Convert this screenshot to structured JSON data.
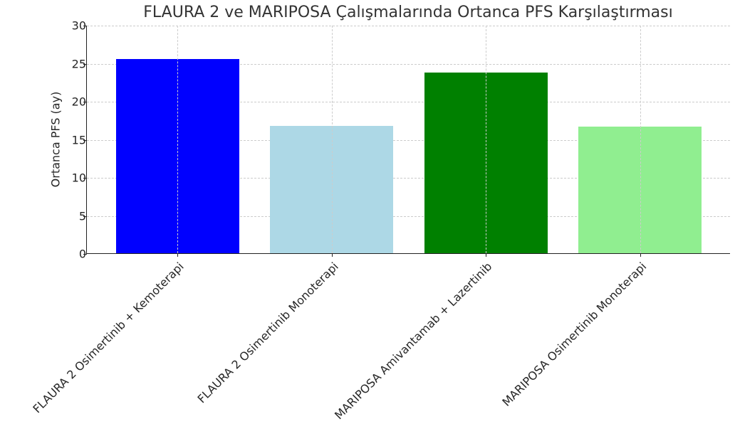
{
  "chart_data": {
    "type": "bar",
    "title": "FLAURA 2 ve MARIPOSA Çalışmalarında Ortanca PFS Karşılaştırması",
    "xlabel": "",
    "ylabel": "Ortanca PFS (ay)",
    "categories": [
      "FLAURA 2 Osimertinib + Kemoterapi",
      "FLAURA 2 Osimertinib Monoterapi",
      "MARIPOSA Amivantamab + Lazertinib",
      "MARIPOSA Osimertinib Monoterapi"
    ],
    "values": [
      25.5,
      16.7,
      23.7,
      16.6
    ],
    "colors": [
      "#0000ff",
      "#add8e6",
      "#008000",
      "#90ee90"
    ],
    "ylim": [
      0,
      30
    ],
    "yticks": [
      0,
      5,
      10,
      15,
      20,
      25,
      30
    ],
    "grid": true,
    "legend": null
  }
}
